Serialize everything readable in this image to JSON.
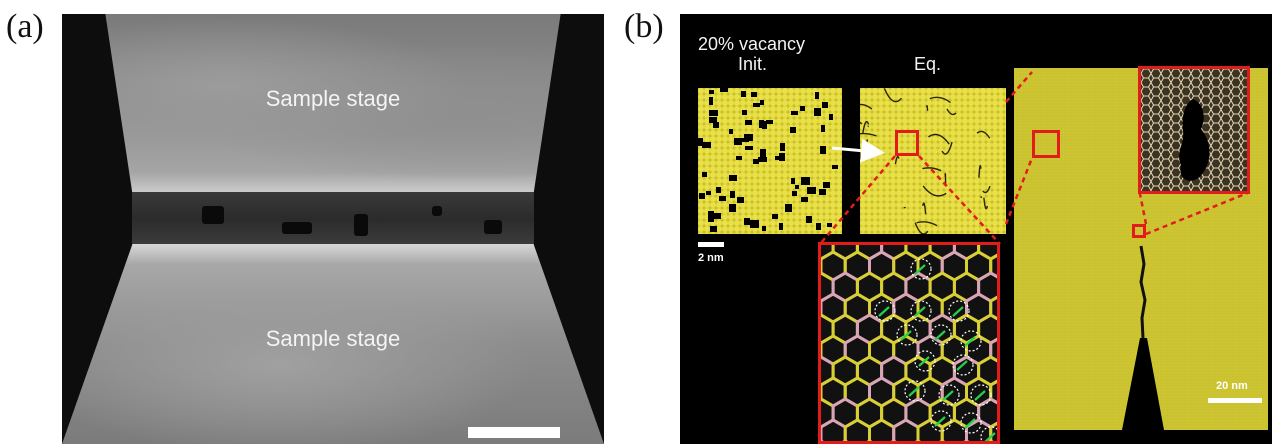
{
  "figure": {
    "panel_a": {
      "label": "(a)",
      "stage_top_label": "Sample stage",
      "stage_bottom_label": "Sample stage"
    },
    "panel_b": {
      "label": "(b)",
      "vacancy_label": "20% vacancy",
      "init_label": "Init.",
      "eq_label": "Eq.",
      "scale_small": "2 nm",
      "scale_large": "20 nm"
    }
  },
  "colors": {
    "highlight": "#e21b1b",
    "atom_yellow": "#d8cf34",
    "bond_pink": "#d9a3b8",
    "arrow_green": "#23d04a"
  }
}
